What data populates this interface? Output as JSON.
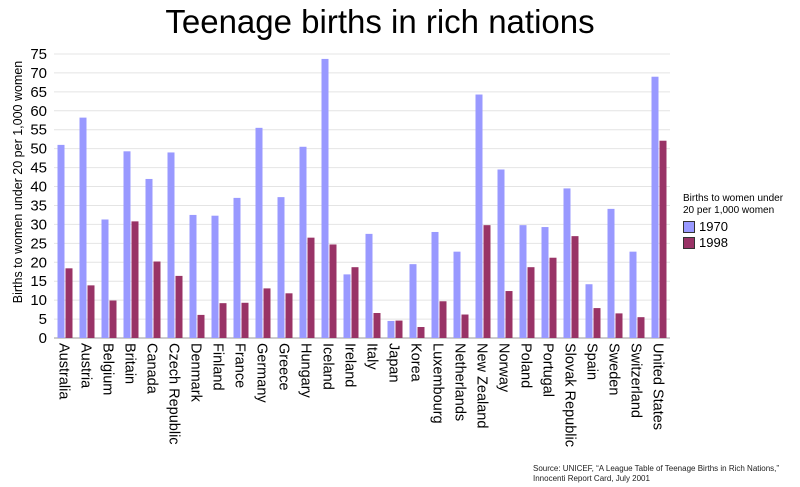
{
  "chart_data": {
    "type": "bar",
    "title": "Teenage births in rich nations",
    "ylabel": "Births to women under 20 per 1,000 women",
    "xlabel": "",
    "ylim": [
      0,
      75
    ],
    "yticks": [
      0,
      5,
      10,
      15,
      20,
      25,
      30,
      35,
      40,
      45,
      50,
      55,
      60,
      65,
      70,
      75
    ],
    "grid": true,
    "legend_title": "Births to women under 20 per 1,000 women",
    "legend_position": "right",
    "categories": [
      "Australia",
      "Austria",
      "Belgium",
      "Britain",
      "Canada",
      "Czech Republic",
      "Denmark",
      "Finland",
      "France",
      "Germany",
      "Greece",
      "Hungary",
      "Iceland",
      "Ireland",
      "Italy",
      "Japan",
      "Korea",
      "Luxembourg",
      "Netherlands",
      "New Zealand",
      "Norway",
      "Poland",
      "Portugal",
      "Slovak Republic",
      "Spain",
      "Sweden",
      "Switzerland",
      "United States"
    ],
    "series": [
      {
        "name": "1970",
        "color": "#9999ff",
        "values": [
          51,
          58.2,
          31.3,
          49.3,
          42,
          49,
          32.5,
          32.3,
          37,
          55.5,
          37.2,
          50.5,
          73.7,
          16.8,
          27.5,
          4.5,
          19.5,
          28,
          22.8,
          64.3,
          44.5,
          29.8,
          29.3,
          39.5,
          14.2,
          34.1,
          22.8,
          69
        ]
      },
      {
        "name": "1998",
        "color": "#993366",
        "values": [
          18.4,
          13.9,
          9.9,
          30.8,
          20.2,
          16.4,
          6.1,
          9.2,
          9.3,
          13.1,
          11.8,
          26.5,
          24.7,
          18.7,
          6.6,
          4.6,
          2.9,
          9.7,
          6.2,
          29.8,
          12.4,
          18.7,
          21.2,
          26.9,
          7.9,
          6.5,
          5.5,
          52.1
        ]
      }
    ]
  },
  "source": {
    "line1": "Source: UNICEF, “A League Table of Teenage Births in Rich Nations,”",
    "line2": "Innocenti Report Card, July 2001"
  }
}
